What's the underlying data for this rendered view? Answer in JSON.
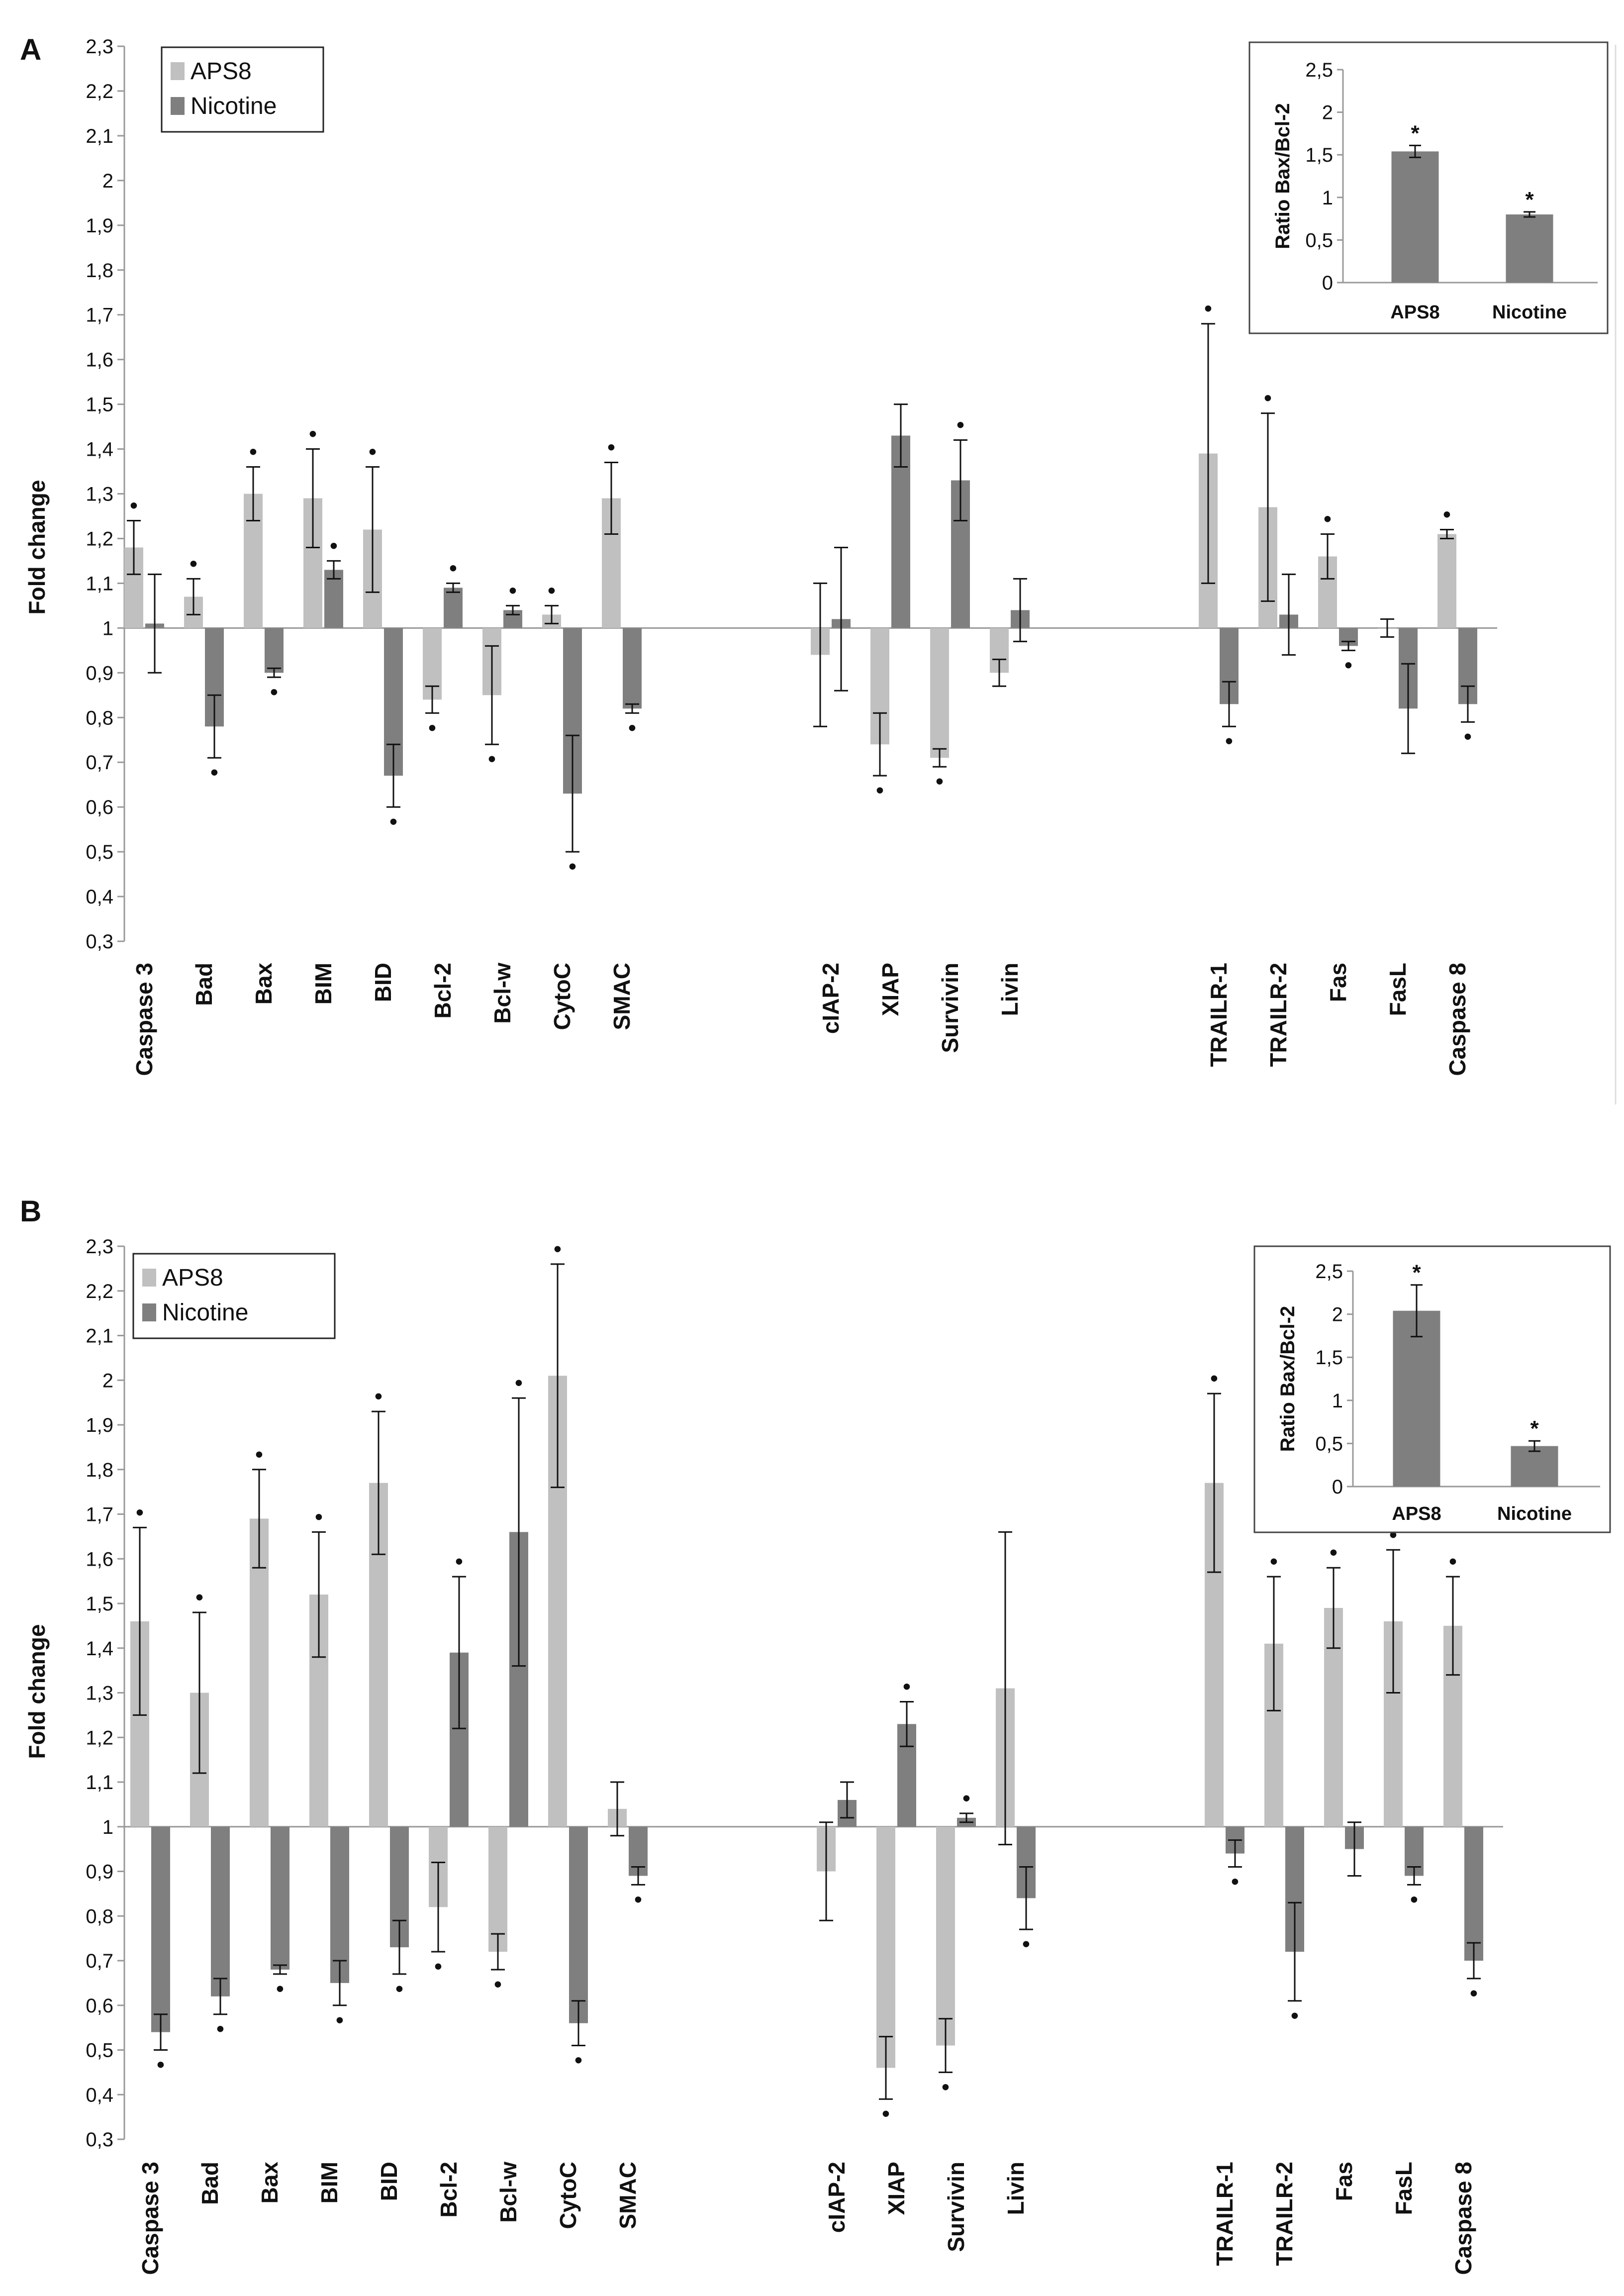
{
  "colors": {
    "aps8": "#c0c0c0",
    "nicotine": "#7f7f7f",
    "inset_bar": "#7f7f7f",
    "axis": "#999999"
  },
  "chart_data": [
    {
      "panel": "A",
      "type": "bar",
      "ylabel": "Fold change",
      "ylim": [
        0.3,
        2.3
      ],
      "ytick_step": 0.1,
      "baseline": 1,
      "legend": [
        "APS8",
        "Nicotine"
      ],
      "legend_position": "top-left",
      "groups": [
        [
          "Caspase 3",
          "Bad",
          "Bax",
          "BIM",
          "BID",
          "Bcl-2",
          "Bcl-w",
          "CytoC",
          "SMAC"
        ],
        [
          "cIAP-2",
          "XIAP",
          "Survivin",
          "Livin"
        ],
        [
          "TRAILR-1",
          "TRAILR-2",
          "Fas",
          "FasL",
          "Caspase 8"
        ]
      ],
      "series": [
        {
          "name": "APS8",
          "values": [
            1.18,
            1.07,
            1.3,
            1.29,
            1.22,
            0.84,
            0.85,
            1.03,
            1.29,
            0.94,
            0.74,
            0.71,
            0.9,
            1.39,
            1.27,
            1.16,
            1.0,
            1.21
          ],
          "errors": [
            0.06,
            0.04,
            0.06,
            0.11,
            0.14,
            0.03,
            0.11,
            0.02,
            0.08,
            0.16,
            0.07,
            0.02,
            0.03,
            0.29,
            0.21,
            0.05,
            0.02,
            0.01
          ],
          "significant": [
            true,
            true,
            true,
            true,
            true,
            true,
            true,
            true,
            true,
            false,
            true,
            true,
            false,
            true,
            true,
            true,
            false,
            true
          ]
        },
        {
          "name": "Nicotine",
          "values": [
            1.01,
            0.78,
            0.9,
            1.13,
            0.67,
            1.09,
            1.04,
            0.63,
            0.82,
            1.02,
            1.43,
            1.33,
            1.04,
            0.83,
            1.03,
            0.96,
            0.82,
            0.83
          ],
          "errors": [
            0.11,
            0.07,
            0.01,
            0.02,
            0.07,
            0.01,
            0.01,
            0.13,
            0.01,
            0.16,
            0.07,
            0.09,
            0.07,
            0.05,
            0.09,
            0.01,
            0.1,
            0.04
          ],
          "significant": [
            false,
            true,
            true,
            true,
            true,
            true,
            true,
            true,
            true,
            false,
            false,
            true,
            false,
            true,
            false,
            true,
            false,
            true
          ]
        }
      ],
      "inset": {
        "ylabel": "Ratio Bax/Bcl-2",
        "categories": [
          "APS8",
          "Nicotine"
        ],
        "values": [
          1.54,
          0.8
        ],
        "errors": [
          0.07,
          0.03
        ],
        "ylim": [
          0,
          2.5
        ],
        "ytick_step": 0.5,
        "ytick_labels": [
          "0",
          "0,5",
          "1",
          "1,5",
          "2",
          "2,5"
        ]
      }
    },
    {
      "panel": "B",
      "type": "bar",
      "ylabel": "Fold change",
      "ylim": [
        0.3,
        2.3
      ],
      "ytick_step": 0.1,
      "baseline": 1,
      "legend": [
        "APS8",
        "Nicotine"
      ],
      "legend_position": "top-left",
      "groups": [
        [
          "Caspase 3",
          "Bad",
          "Bax",
          "BIM",
          "BID",
          "Bcl-2",
          "Bcl-w",
          "CytoC",
          "SMAC"
        ],
        [
          "cIAP-2",
          "XIAP",
          "Survivin",
          "Livin"
        ],
        [
          "TRAILR-1",
          "TRAILR-2",
          "Fas",
          "FasL",
          "Caspase 8"
        ]
      ],
      "series": [
        {
          "name": "APS8",
          "values": [
            1.46,
            1.3,
            1.69,
            1.52,
            1.77,
            0.82,
            0.72,
            2.01,
            1.04,
            0.9,
            0.46,
            0.51,
            1.31,
            1.77,
            1.41,
            1.49,
            1.46,
            1.45
          ],
          "errors": [
            0.21,
            0.18,
            0.11,
            0.14,
            0.16,
            0.1,
            0.04,
            0.25,
            0.06,
            0.11,
            0.07,
            0.06,
            0.35,
            0.2,
            0.15,
            0.09,
            0.16,
            0.11
          ],
          "significant": [
            true,
            true,
            true,
            true,
            true,
            true,
            true,
            true,
            false,
            false,
            true,
            true,
            false,
            true,
            true,
            true,
            true,
            true
          ]
        },
        {
          "name": "Nicotine",
          "values": [
            0.54,
            0.62,
            0.68,
            0.65,
            0.73,
            1.39,
            1.66,
            0.56,
            0.89,
            1.06,
            1.23,
            1.02,
            0.84,
            0.94,
            0.72,
            0.95,
            0.89,
            0.7
          ],
          "errors": [
            0.04,
            0.04,
            0.01,
            0.05,
            0.06,
            0.17,
            0.3,
            0.05,
            0.02,
            0.04,
            0.05,
            0.01,
            0.07,
            0.03,
            0.11,
            0.06,
            0.02,
            0.04
          ],
          "significant": [
            true,
            true,
            true,
            true,
            true,
            true,
            true,
            true,
            true,
            false,
            true,
            true,
            true,
            true,
            true,
            false,
            true,
            true
          ]
        }
      ],
      "inset": {
        "ylabel": "Ratio Bax/Bcl-2",
        "categories": [
          "APS8",
          "Nicotine"
        ],
        "values": [
          2.04,
          0.47
        ],
        "errors": [
          0.3,
          0.06
        ],
        "ylim": [
          0,
          2.5
        ],
        "ytick_step": 0.5,
        "ytick_labels": [
          "0",
          "0,5",
          "1",
          "1,5",
          "2",
          "2,5"
        ]
      }
    }
  ]
}
